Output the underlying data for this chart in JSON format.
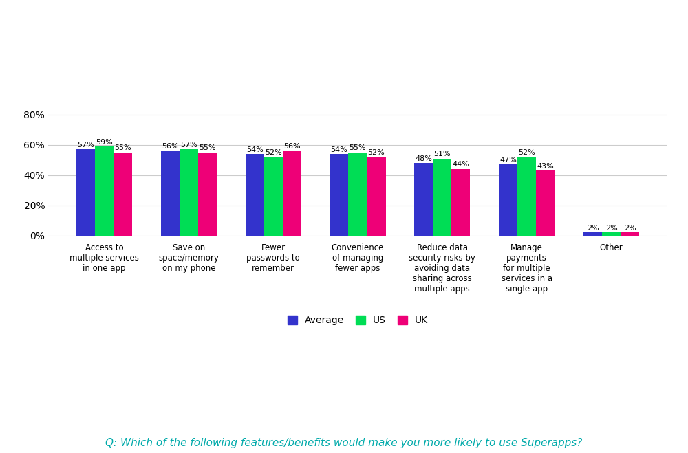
{
  "categories": [
    "Access to\nmultiple services\nin one app",
    "Save on\nspace/memory\non my phone",
    "Fewer\npasswords to\nremember",
    "Convenience\nof managing\nfewer apps",
    "Reduce data\nsecurity risks by\navoiding data\nsharing across\nmultiple apps",
    "Manage\npayments\nfor multiple\nservices in a\nsingle app",
    "Other"
  ],
  "average": [
    57,
    56,
    54,
    54,
    48,
    47,
    2
  ],
  "us": [
    59,
    57,
    52,
    55,
    51,
    52,
    2
  ],
  "uk": [
    55,
    55,
    56,
    52,
    44,
    43,
    2
  ],
  "colors": {
    "average": "#3333cc",
    "us": "#00dd55",
    "uk": "#ee0077"
  },
  "bar_width": 0.22,
  "ylim": [
    0,
    90
  ],
  "yticks": [
    0,
    20,
    40,
    60,
    80
  ],
  "ytick_labels": [
    "0%",
    "20%",
    "40%",
    "60%",
    "80%"
  ],
  "grid_color": "#cccccc",
  "background_color": "#ffffff",
  "legend_labels": [
    "Average",
    "US",
    "UK"
  ],
  "footer_text": "Q: Which of the following features/benefits would make you more likely to use Superapps?",
  "label_fontsize": 8.0,
  "tick_fontsize": 10,
  "legend_fontsize": 10,
  "footer_fontsize": 11,
  "footer_color": "#00aaaa"
}
